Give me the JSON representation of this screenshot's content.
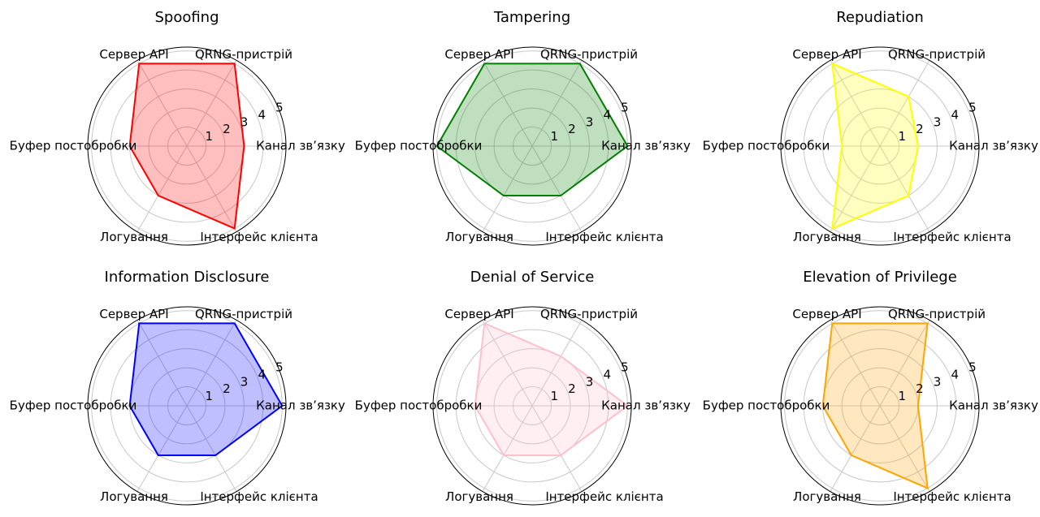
{
  "chart_data": [
    {
      "type": "radar",
      "title": "Spoofing",
      "categories": [
        "Канал зв’язку",
        "QRNG-пристрій",
        "Сервер API",
        "Буфер постобробки",
        "Логування",
        "Інтерфейс клієнта"
      ],
      "values": [
        3,
        5,
        5,
        3,
        3,
        5
      ],
      "color": "#ff0000",
      "ylim": [
        0,
        5.2
      ],
      "yticks": [
        1,
        2,
        3,
        4,
        5
      ],
      "grid": true
    },
    {
      "type": "radar",
      "title": "Tampering",
      "categories": [
        "Канал зв’язку",
        "QRNG-пристрій",
        "Сервер API",
        "Буфер постобробки",
        "Логування",
        "Інтерфейс клієнта"
      ],
      "values": [
        5,
        5,
        5,
        5,
        3,
        3
      ],
      "color": "#008000",
      "ylim": [
        0,
        5.2
      ],
      "yticks": [
        1,
        2,
        3,
        4,
        5
      ],
      "grid": true
    },
    {
      "type": "radar",
      "title": "Repudiation",
      "categories": [
        "Канал зв’язку",
        "QRNG-пристрій",
        "Сервер API",
        "Буфер постобробки",
        "Логування",
        "Інтерфейс клієнта"
      ],
      "values": [
        2,
        3,
        5,
        2,
        5,
        3
      ],
      "color": "#ffff00",
      "ylim": [
        0,
        5.2
      ],
      "yticks": [
        1,
        2,
        3,
        4,
        5
      ],
      "grid": true
    },
    {
      "type": "radar",
      "title": "Information Disclosure",
      "categories": [
        "Канал зв’язку",
        "QRNG-пристрій",
        "Сервер API",
        "Буфер постобробки",
        "Логування",
        "Інтерфейс клієнта"
      ],
      "values": [
        5,
        5,
        5,
        3,
        3,
        3
      ],
      "color": "#0000ff",
      "ylim": [
        0,
        5.2
      ],
      "yticks": [
        1,
        2,
        3,
        4,
        5
      ],
      "grid": true
    },
    {
      "type": "radar",
      "title": "Denial of Service",
      "categories": [
        "Канал зв’язку",
        "QRNG-пристрій",
        "Сервер API",
        "Буфер постобробки",
        "Логування",
        "Інтерфейс клієнта"
      ],
      "values": [
        5,
        3,
        5,
        3,
        3,
        3
      ],
      "color": "#ffc0cb",
      "ylim": [
        0,
        5.2
      ],
      "yticks": [
        1,
        2,
        3,
        4,
        5
      ],
      "grid": true
    },
    {
      "type": "radar",
      "title": "Elevation of Privilege",
      "categories": [
        "Канал зв’язку",
        "QRNG-пристрій",
        "Сервер API",
        "Буфер постобробки",
        "Логування",
        "Інтерфейс клієнта"
      ],
      "values": [
        2,
        5,
        5,
        3,
        3,
        5
      ],
      "color": "#ffa500",
      "ylim": [
        0,
        5.2
      ],
      "yticks": [
        1,
        2,
        3,
        4,
        5
      ],
      "grid": true
    }
  ]
}
